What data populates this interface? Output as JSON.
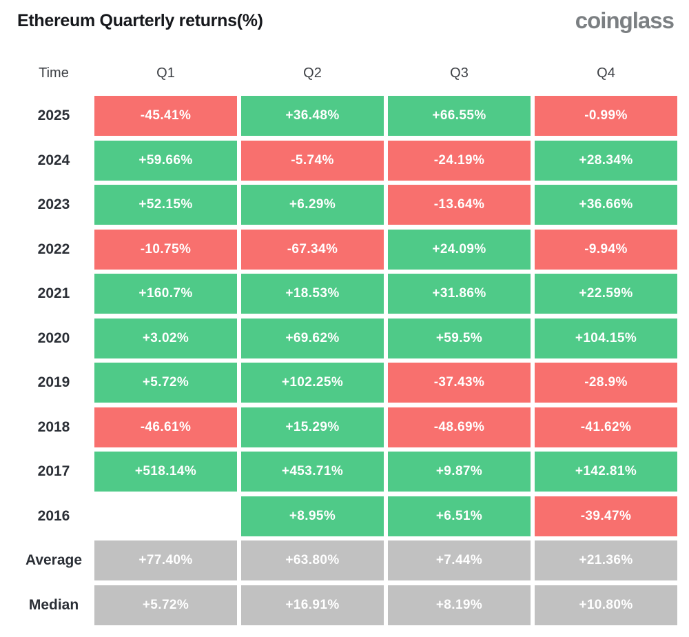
{
  "header": {
    "title": "Ethereum Quarterly returns(%)",
    "logo_text": "coinglass"
  },
  "colors": {
    "positive": "#4fca88",
    "negative": "#f8706e",
    "summary": "#c1c1c1",
    "title_text": "#16181c",
    "logo_text": "#7b7f82",
    "row_label_text": "#2b2f36",
    "cell_text": "#ffffff"
  },
  "table": {
    "columns": [
      "Time",
      "Q1",
      "Q2",
      "Q3",
      "Q4"
    ],
    "rows": [
      {
        "label": "2025",
        "cells": [
          {
            "text": "-45.41%",
            "type": "neg"
          },
          {
            "text": "+36.48%",
            "type": "pos"
          },
          {
            "text": "+66.55%",
            "type": "pos"
          },
          {
            "text": "-0.99%",
            "type": "neg"
          }
        ]
      },
      {
        "label": "2024",
        "cells": [
          {
            "text": "+59.66%",
            "type": "pos"
          },
          {
            "text": "-5.74%",
            "type": "neg"
          },
          {
            "text": "-24.19%",
            "type": "neg"
          },
          {
            "text": "+28.34%",
            "type": "pos"
          }
        ]
      },
      {
        "label": "2023",
        "cells": [
          {
            "text": "+52.15%",
            "type": "pos"
          },
          {
            "text": "+6.29%",
            "type": "pos"
          },
          {
            "text": "-13.64%",
            "type": "neg"
          },
          {
            "text": "+36.66%",
            "type": "pos"
          }
        ]
      },
      {
        "label": "2022",
        "cells": [
          {
            "text": "-10.75%",
            "type": "neg"
          },
          {
            "text": "-67.34%",
            "type": "neg"
          },
          {
            "text": "+24.09%",
            "type": "pos"
          },
          {
            "text": "-9.94%",
            "type": "neg"
          }
        ]
      },
      {
        "label": "2021",
        "cells": [
          {
            "text": "+160.7%",
            "type": "pos"
          },
          {
            "text": "+18.53%",
            "type": "pos"
          },
          {
            "text": "+31.86%",
            "type": "pos"
          },
          {
            "text": "+22.59%",
            "type": "pos"
          }
        ]
      },
      {
        "label": "2020",
        "cells": [
          {
            "text": "+3.02%",
            "type": "pos"
          },
          {
            "text": "+69.62%",
            "type": "pos"
          },
          {
            "text": "+59.5%",
            "type": "pos"
          },
          {
            "text": "+104.15%",
            "type": "pos"
          }
        ]
      },
      {
        "label": "2019",
        "cells": [
          {
            "text": "+5.72%",
            "type": "pos"
          },
          {
            "text": "+102.25%",
            "type": "pos"
          },
          {
            "text": "-37.43%",
            "type": "neg"
          },
          {
            "text": "-28.9%",
            "type": "neg"
          }
        ]
      },
      {
        "label": "2018",
        "cells": [
          {
            "text": "-46.61%",
            "type": "neg"
          },
          {
            "text": "+15.29%",
            "type": "pos"
          },
          {
            "text": "-48.69%",
            "type": "neg"
          },
          {
            "text": "-41.62%",
            "type": "neg"
          }
        ]
      },
      {
        "label": "2017",
        "cells": [
          {
            "text": "+518.14%",
            "type": "pos"
          },
          {
            "text": "+453.71%",
            "type": "pos"
          },
          {
            "text": "+9.87%",
            "type": "pos"
          },
          {
            "text": "+142.81%",
            "type": "pos"
          }
        ]
      },
      {
        "label": "2016",
        "cells": [
          null,
          {
            "text": "+8.95%",
            "type": "pos"
          },
          {
            "text": "+6.51%",
            "type": "pos"
          },
          {
            "text": "-39.47%",
            "type": "neg"
          }
        ]
      },
      {
        "label": "Average",
        "cells": [
          {
            "text": "+77.40%",
            "type": "avg"
          },
          {
            "text": "+63.80%",
            "type": "avg"
          },
          {
            "text": "+7.44%",
            "type": "avg"
          },
          {
            "text": "+21.36%",
            "type": "avg"
          }
        ]
      },
      {
        "label": "Median",
        "cells": [
          {
            "text": "+5.72%",
            "type": "avg"
          },
          {
            "text": "+16.91%",
            "type": "avg"
          },
          {
            "text": "+8.19%",
            "type": "avg"
          },
          {
            "text": "+10.80%",
            "type": "avg"
          }
        ]
      }
    ]
  },
  "chart_data": {
    "type": "heatmap",
    "title": "Ethereum Quarterly returns(%)",
    "columns": [
      "Q1",
      "Q2",
      "Q3",
      "Q4"
    ],
    "rows": [
      "2025",
      "2024",
      "2023",
      "2022",
      "2021",
      "2020",
      "2019",
      "2018",
      "2017",
      "2016",
      "Average",
      "Median"
    ],
    "values": [
      [
        -45.41,
        36.48,
        66.55,
        -0.99
      ],
      [
        59.66,
        -5.74,
        -24.19,
        28.34
      ],
      [
        52.15,
        6.29,
        -13.64,
        36.66
      ],
      [
        -10.75,
        -67.34,
        24.09,
        -9.94
      ],
      [
        160.7,
        18.53,
        31.86,
        22.59
      ],
      [
        3.02,
        69.62,
        59.5,
        104.15
      ],
      [
        5.72,
        102.25,
        -37.43,
        -28.9
      ],
      [
        -46.61,
        15.29,
        -48.69,
        -41.62
      ],
      [
        518.14,
        453.71,
        9.87,
        142.81
      ],
      [
        null,
        8.95,
        6.51,
        -39.47
      ],
      [
        77.4,
        63.8,
        7.44,
        21.36
      ],
      [
        5.72,
        16.91,
        8.19,
        10.8
      ]
    ],
    "legend": "cell color: green = positive return, red = negative return, gray = Average/Median summary rows; 2016 Q1 has no data"
  }
}
